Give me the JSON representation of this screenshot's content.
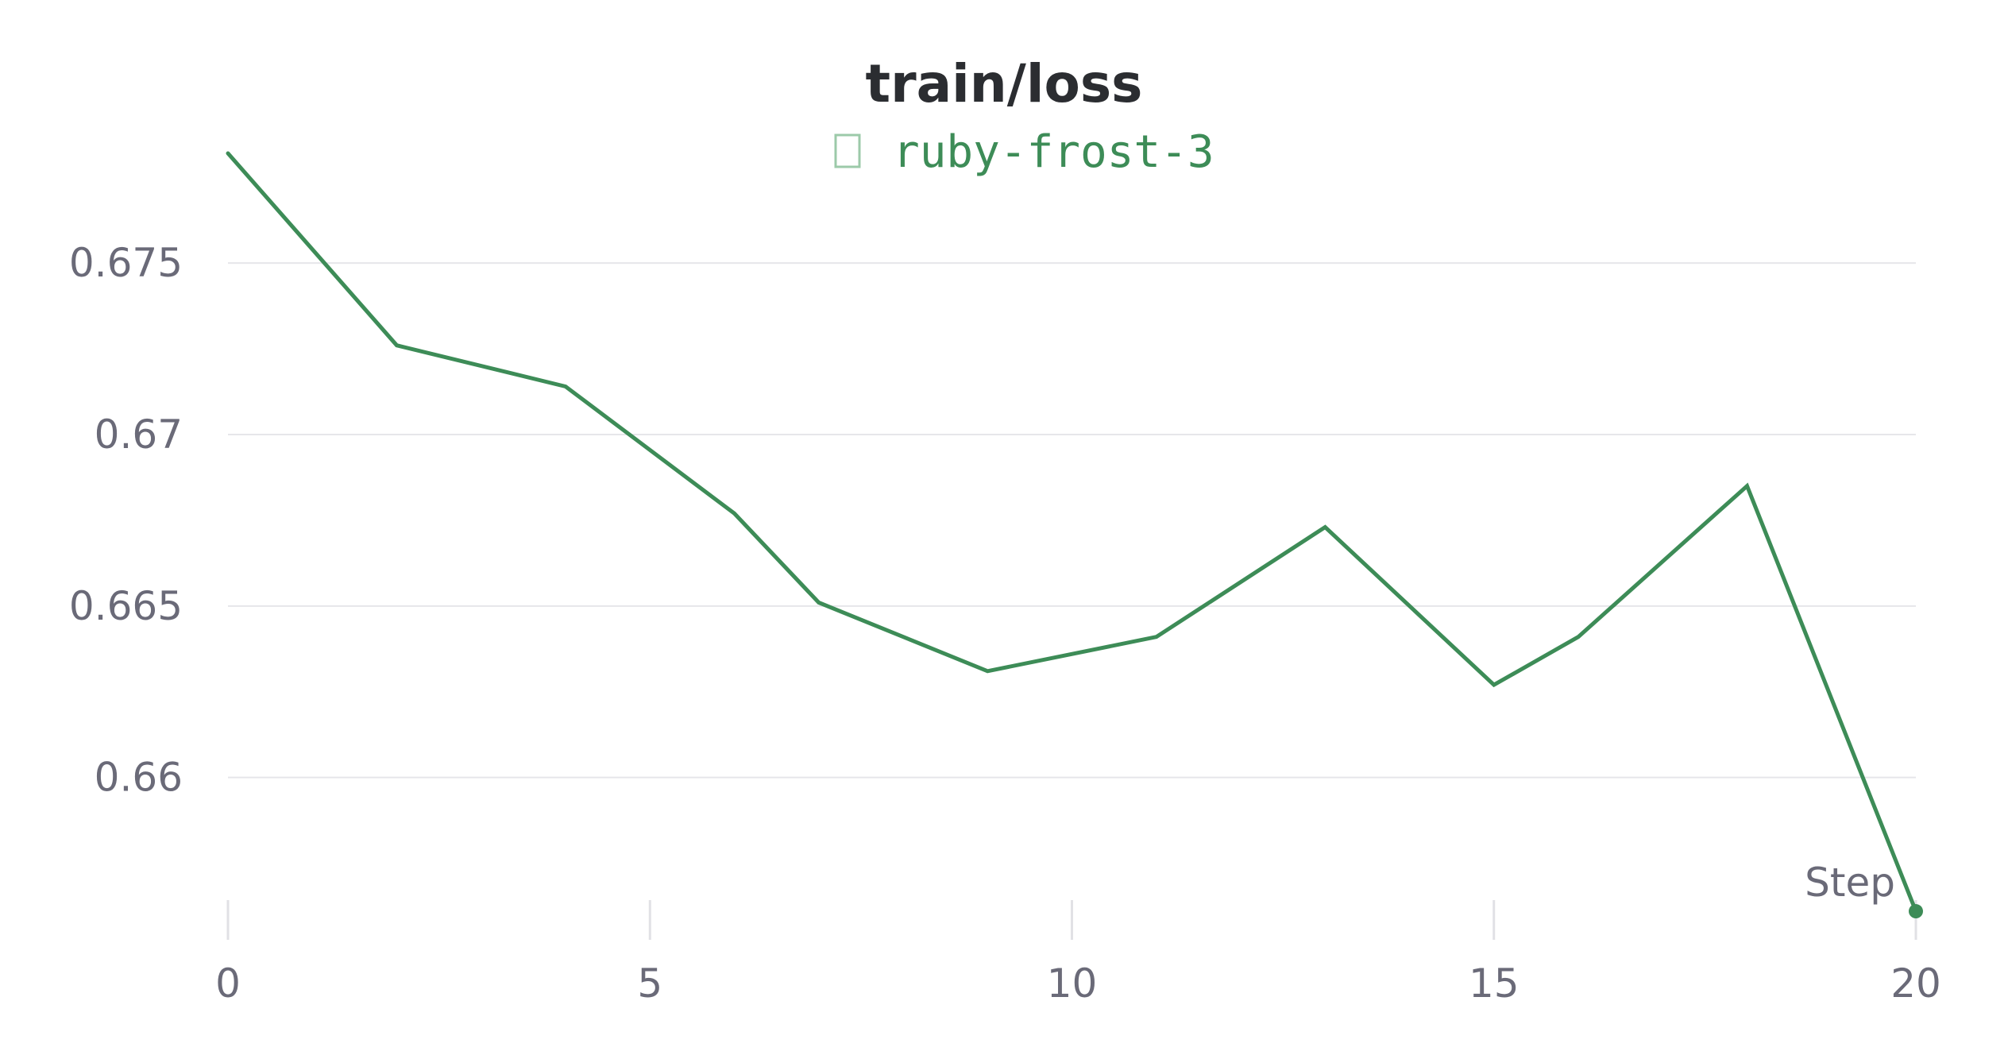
{
  "chart_data": {
    "type": "line",
    "title": "train/loss",
    "xlabel": "Step",
    "ylabel": "",
    "xlim": [
      0,
      20
    ],
    "ylim": [
      0.6558,
      0.6785
    ],
    "xticks": [
      0,
      5,
      10,
      15,
      20
    ],
    "xtick_labels": [
      "0",
      "5",
      "10",
      "15",
      "20"
    ],
    "yticks": [
      0.66,
      0.665,
      0.67,
      0.675
    ],
    "ytick_labels": [
      "0.66",
      "0.665",
      "0.67",
      "0.675"
    ],
    "grid": "horizontal",
    "legend_position": "top-center",
    "series": [
      {
        "name": "ruby-frost-3",
        "color": "#3d8c57",
        "x": [
          0,
          2,
          4,
          6,
          7,
          9,
          11,
          13,
          15,
          16,
          18,
          20
        ],
        "y": [
          0.6782,
          0.6726,
          0.6714,
          0.6677,
          0.6651,
          0.6631,
          0.6641,
          0.6673,
          0.6627,
          0.6641,
          0.6685,
          0.6561
        ]
      }
    ]
  }
}
